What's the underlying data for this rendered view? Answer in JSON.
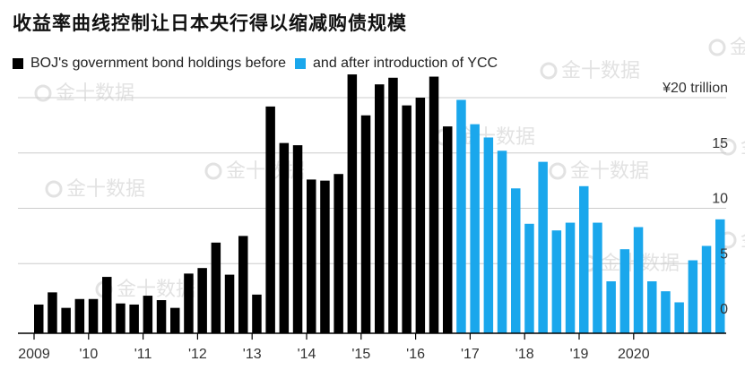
{
  "title": "收益率曲线控制让日本央行得以缩减购债规模",
  "watermark_text": "金十数据",
  "colors": {
    "before": "#000000",
    "after": "#1aa7ec",
    "grid": "#cccccc",
    "axis": "#000000",
    "watermark": "#e2e2e2"
  },
  "chart_data": {
    "type": "bar",
    "legend": {
      "placement": "top-left",
      "entries": [
        {
          "label": "BOJ's government bond holdings before",
          "color": "#000000"
        },
        {
          "label": "and after introduction of YCC",
          "color": "#1aa7ec"
        }
      ]
    },
    "y_unit_label": "¥20 trillion",
    "y_ticks": [
      0,
      5,
      10,
      15,
      20
    ],
    "y_tick_labels": [
      "0",
      "5",
      "10",
      "15",
      "¥20 trillion"
    ],
    "ylim": [
      -1.3,
      22
    ],
    "grid": true,
    "x_tick_labels": [
      "2009",
      "'10",
      "'11",
      "'12",
      "'13",
      "'14",
      "'15",
      "'16",
      "'17",
      "'18",
      "'19",
      "2020"
    ],
    "first_year": 2009,
    "bars_per_year": 4,
    "series": [
      {
        "name": "BOJ's government bond holdings before",
        "color": "#000000",
        "values": [
          1.3,
          2.4,
          1.0,
          1.8,
          1.8,
          3.8,
          1.4,
          1.3,
          2.1,
          1.7,
          1.0,
          4.1,
          4.6,
          6.9,
          4.0,
          7.5,
          2.2,
          19.2,
          15.9,
          15.7,
          12.6,
          12.5,
          13.1,
          22.1,
          18.4,
          21.2,
          21.8,
          19.3,
          20.0,
          21.9,
          17.4
        ]
      },
      {
        "name": "and after introduction of YCC",
        "color": "#1aa7ec",
        "values": [
          19.8,
          17.6,
          16.4,
          15.2,
          11.8,
          8.6,
          14.2,
          8.0,
          8.7,
          12.0,
          8.7,
          3.4,
          6.3,
          8.3,
          3.4,
          2.5,
          1.5,
          5.3,
          6.6,
          9.0
        ]
      }
    ]
  }
}
